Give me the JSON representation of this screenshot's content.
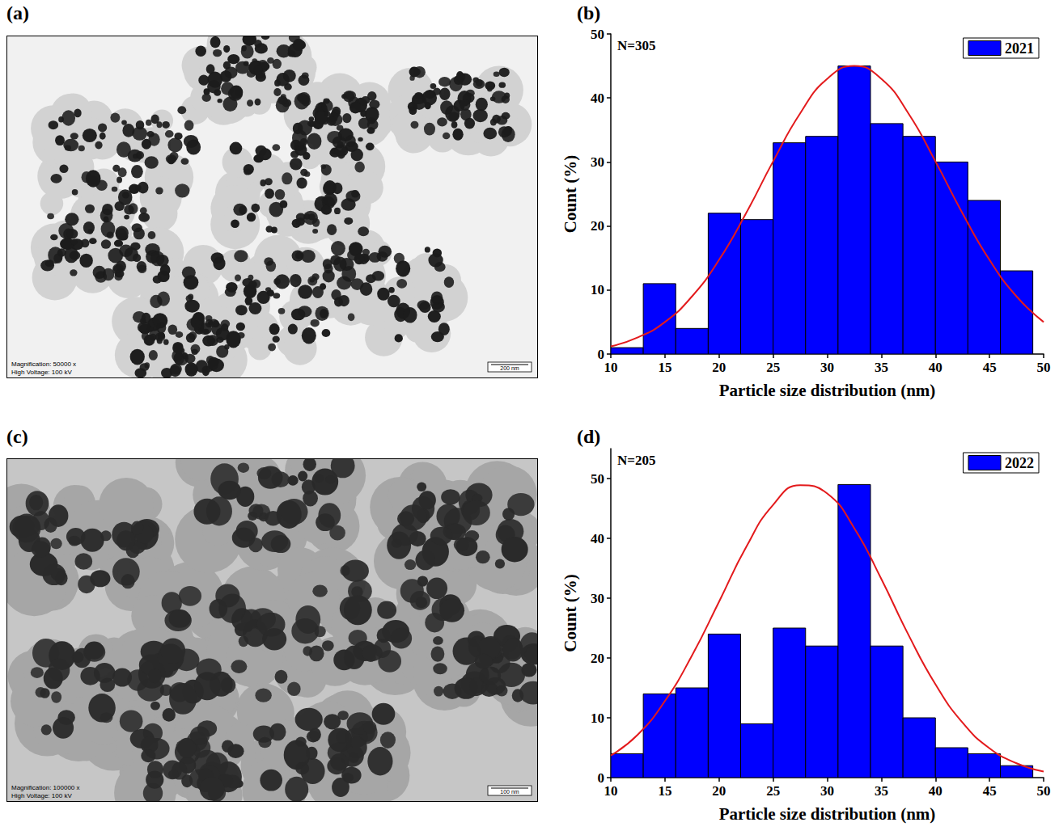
{
  "images": [
    {
      "panel_label": "(a)",
      "magnification": "Magnification: 50000 x",
      "voltage": "High Voltage: 100 kV",
      "scale_bar": "200 nm"
    },
    {
      "panel_label": "(c)",
      "magnification": "Magnification: 100000 x",
      "voltage": "High Voltage: 100 kV",
      "scale_bar": "100 nm"
    }
  ],
  "chart_data": [
    {
      "type": "histogram",
      "panel_label": "(b)",
      "annotation": "N=305",
      "xlabel": "Particle size distribution (nm)",
      "ylabel": "Count (%)",
      "bins": [
        10,
        13,
        16,
        19,
        22,
        25,
        28,
        31,
        34,
        37,
        40,
        43,
        46,
        49
      ],
      "series": [
        {
          "name": "2021",
          "color": "#0000ff",
          "values": [
            1,
            11,
            4,
            22,
            21,
            33,
            34,
            45,
            36,
            34,
            30,
            24,
            13
          ]
        }
      ],
      "fit": {
        "type": "line",
        "line_style": "solid",
        "color": "#e31a1c",
        "x": [
          10,
          12.5,
          15,
          17.5,
          20,
          22.5,
          25,
          27.5,
          30,
          32.5,
          35,
          37.5,
          40,
          42.5,
          45,
          47.5,
          50
        ],
        "values": [
          1.2,
          2.6,
          5.0,
          9.0,
          14.7,
          22.0,
          30.1,
          37.6,
          43.0,
          45,
          43.0,
          37.6,
          30.1,
          22.0,
          14.7,
          9.0,
          5.0
        ]
      },
      "xlim": [
        10,
        50
      ],
      "xticks": [
        10,
        15,
        20,
        25,
        30,
        35,
        40,
        45,
        50
      ],
      "ylim": [
        0,
        50
      ],
      "yticks": [
        0,
        10,
        20,
        30,
        40,
        50
      ],
      "grid": false,
      "legend": "upper right"
    },
    {
      "type": "histogram",
      "panel_label": "(d)",
      "annotation": "N=205",
      "xlabel": "Particle size distribution (nm)",
      "ylabel": "Count (%)",
      "bins": [
        10,
        13,
        16,
        19,
        22,
        25,
        28,
        31,
        34,
        37,
        40,
        43,
        46,
        49
      ],
      "series": [
        {
          "name": "2022",
          "color": "#0000ff",
          "values": [
            4,
            14,
            15,
            24,
            9,
            25,
            22,
            49,
            22,
            10,
            5,
            4,
            2
          ]
        }
      ],
      "fit": {
        "type": "line",
        "line_style": "solid",
        "color": "#e31a1c",
        "x": [
          10,
          12.5,
          15,
          17.5,
          20,
          22.5,
          25,
          27.5,
          30,
          32.5,
          35,
          37.5,
          40,
          42.5,
          45,
          47.5,
          50
        ],
        "values": [
          3.7,
          7.2,
          12.8,
          20.4,
          29.4,
          38.5,
          45.6,
          48.9,
          47.5,
          41.7,
          33.2,
          23.9,
          15.6,
          9.2,
          4.9,
          2.4,
          1.0
        ]
      },
      "xlim": [
        10,
        50
      ],
      "xticks": [
        10,
        15,
        20,
        25,
        30,
        35,
        40,
        45,
        50
      ],
      "ylim": [
        0,
        55
      ],
      "yticks": [
        0,
        10,
        20,
        30,
        40,
        50
      ],
      "grid": false,
      "legend": "upper right"
    }
  ]
}
